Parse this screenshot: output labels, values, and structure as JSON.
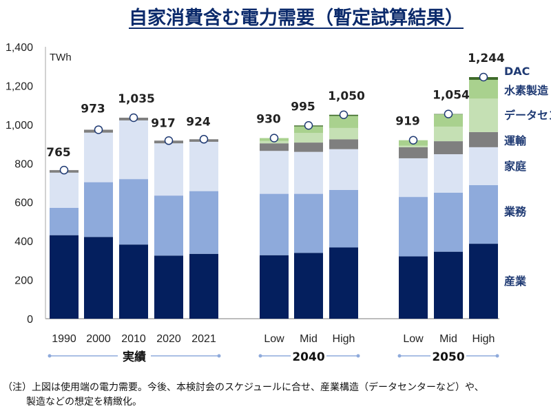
{
  "title": "自家消費含む電力需要（暫定試算結果）",
  "note": {
    "line1": "（注）上図は使用端の電力需要。今後、本検討会のスケジュールに合せ、産業構造（データセンターなど）や、",
    "line2": "製造などの想定を精緻化。"
  },
  "chart_data": {
    "type": "bar",
    "stacked": true,
    "title": "自家消費含む電力需要（暫定試算結果）",
    "ylabel": "TWh",
    "ylim": [
      0,
      1400
    ],
    "yticks": [
      "0",
      "200",
      "400",
      "600",
      "800",
      "1,000",
      "1,200",
      "1,400"
    ],
    "grid": false,
    "legend": "right",
    "categories": [
      "1990",
      "2000",
      "2010",
      "2020",
      "2021",
      "Low",
      "Mid",
      "High",
      "Low",
      "Mid",
      "High"
    ],
    "groups": [
      {
        "label": "実績",
        "count": 5
      },
      {
        "label": "2040",
        "count": 3
      },
      {
        "label": "2050",
        "count": 3
      }
    ],
    "totals": [
      765,
      973,
      1035,
      917,
      924,
      930,
      995,
      1050,
      919,
      1054,
      1244
    ],
    "total_labels": [
      "765",
      "973",
      "1,035",
      "917",
      "924",
      "930",
      "995",
      "1,050",
      "919",
      "1,054",
      "1,244"
    ],
    "series": [
      {
        "name": "産業",
        "color": "#041f5e",
        "values": [
          430,
          421,
          382,
          325,
          334,
          327,
          339,
          367,
          321,
          345,
          386
        ]
      },
      {
        "name": "業務",
        "color": "#8eaadb",
        "values": [
          141,
          282,
          337,
          309,
          323,
          316,
          304,
          296,
          306,
          304,
          302
        ]
      },
      {
        "name": "家庭",
        "color": "#dae3f3",
        "values": [
          181,
          255,
          302,
          269,
          254,
          221,
          216,
          210,
          199,
          198,
          195
        ]
      },
      {
        "name": "運輸",
        "color": "#7f7f7f",
        "values": [
          13,
          15,
          14,
          14,
          13,
          39,
          48,
          51,
          57,
          67,
          78
        ]
      },
      {
        "name": "データセンター",
        "color": "#c5e0b4",
        "values": [
          0,
          0,
          0,
          0,
          0,
          12,
          49,
          58,
          8,
          75,
          172
        ]
      },
      {
        "name": "水素製造",
        "color": "#a9d18e",
        "values": [
          0,
          0,
          0,
          0,
          0,
          15,
          34,
          62,
          28,
          63,
          97
        ]
      },
      {
        "name": "DAC",
        "color": "#3f6b2a",
        "values": [
          0,
          0,
          0,
          0,
          0,
          0,
          5,
          6,
          0,
          2,
          14
        ]
      }
    ]
  }
}
